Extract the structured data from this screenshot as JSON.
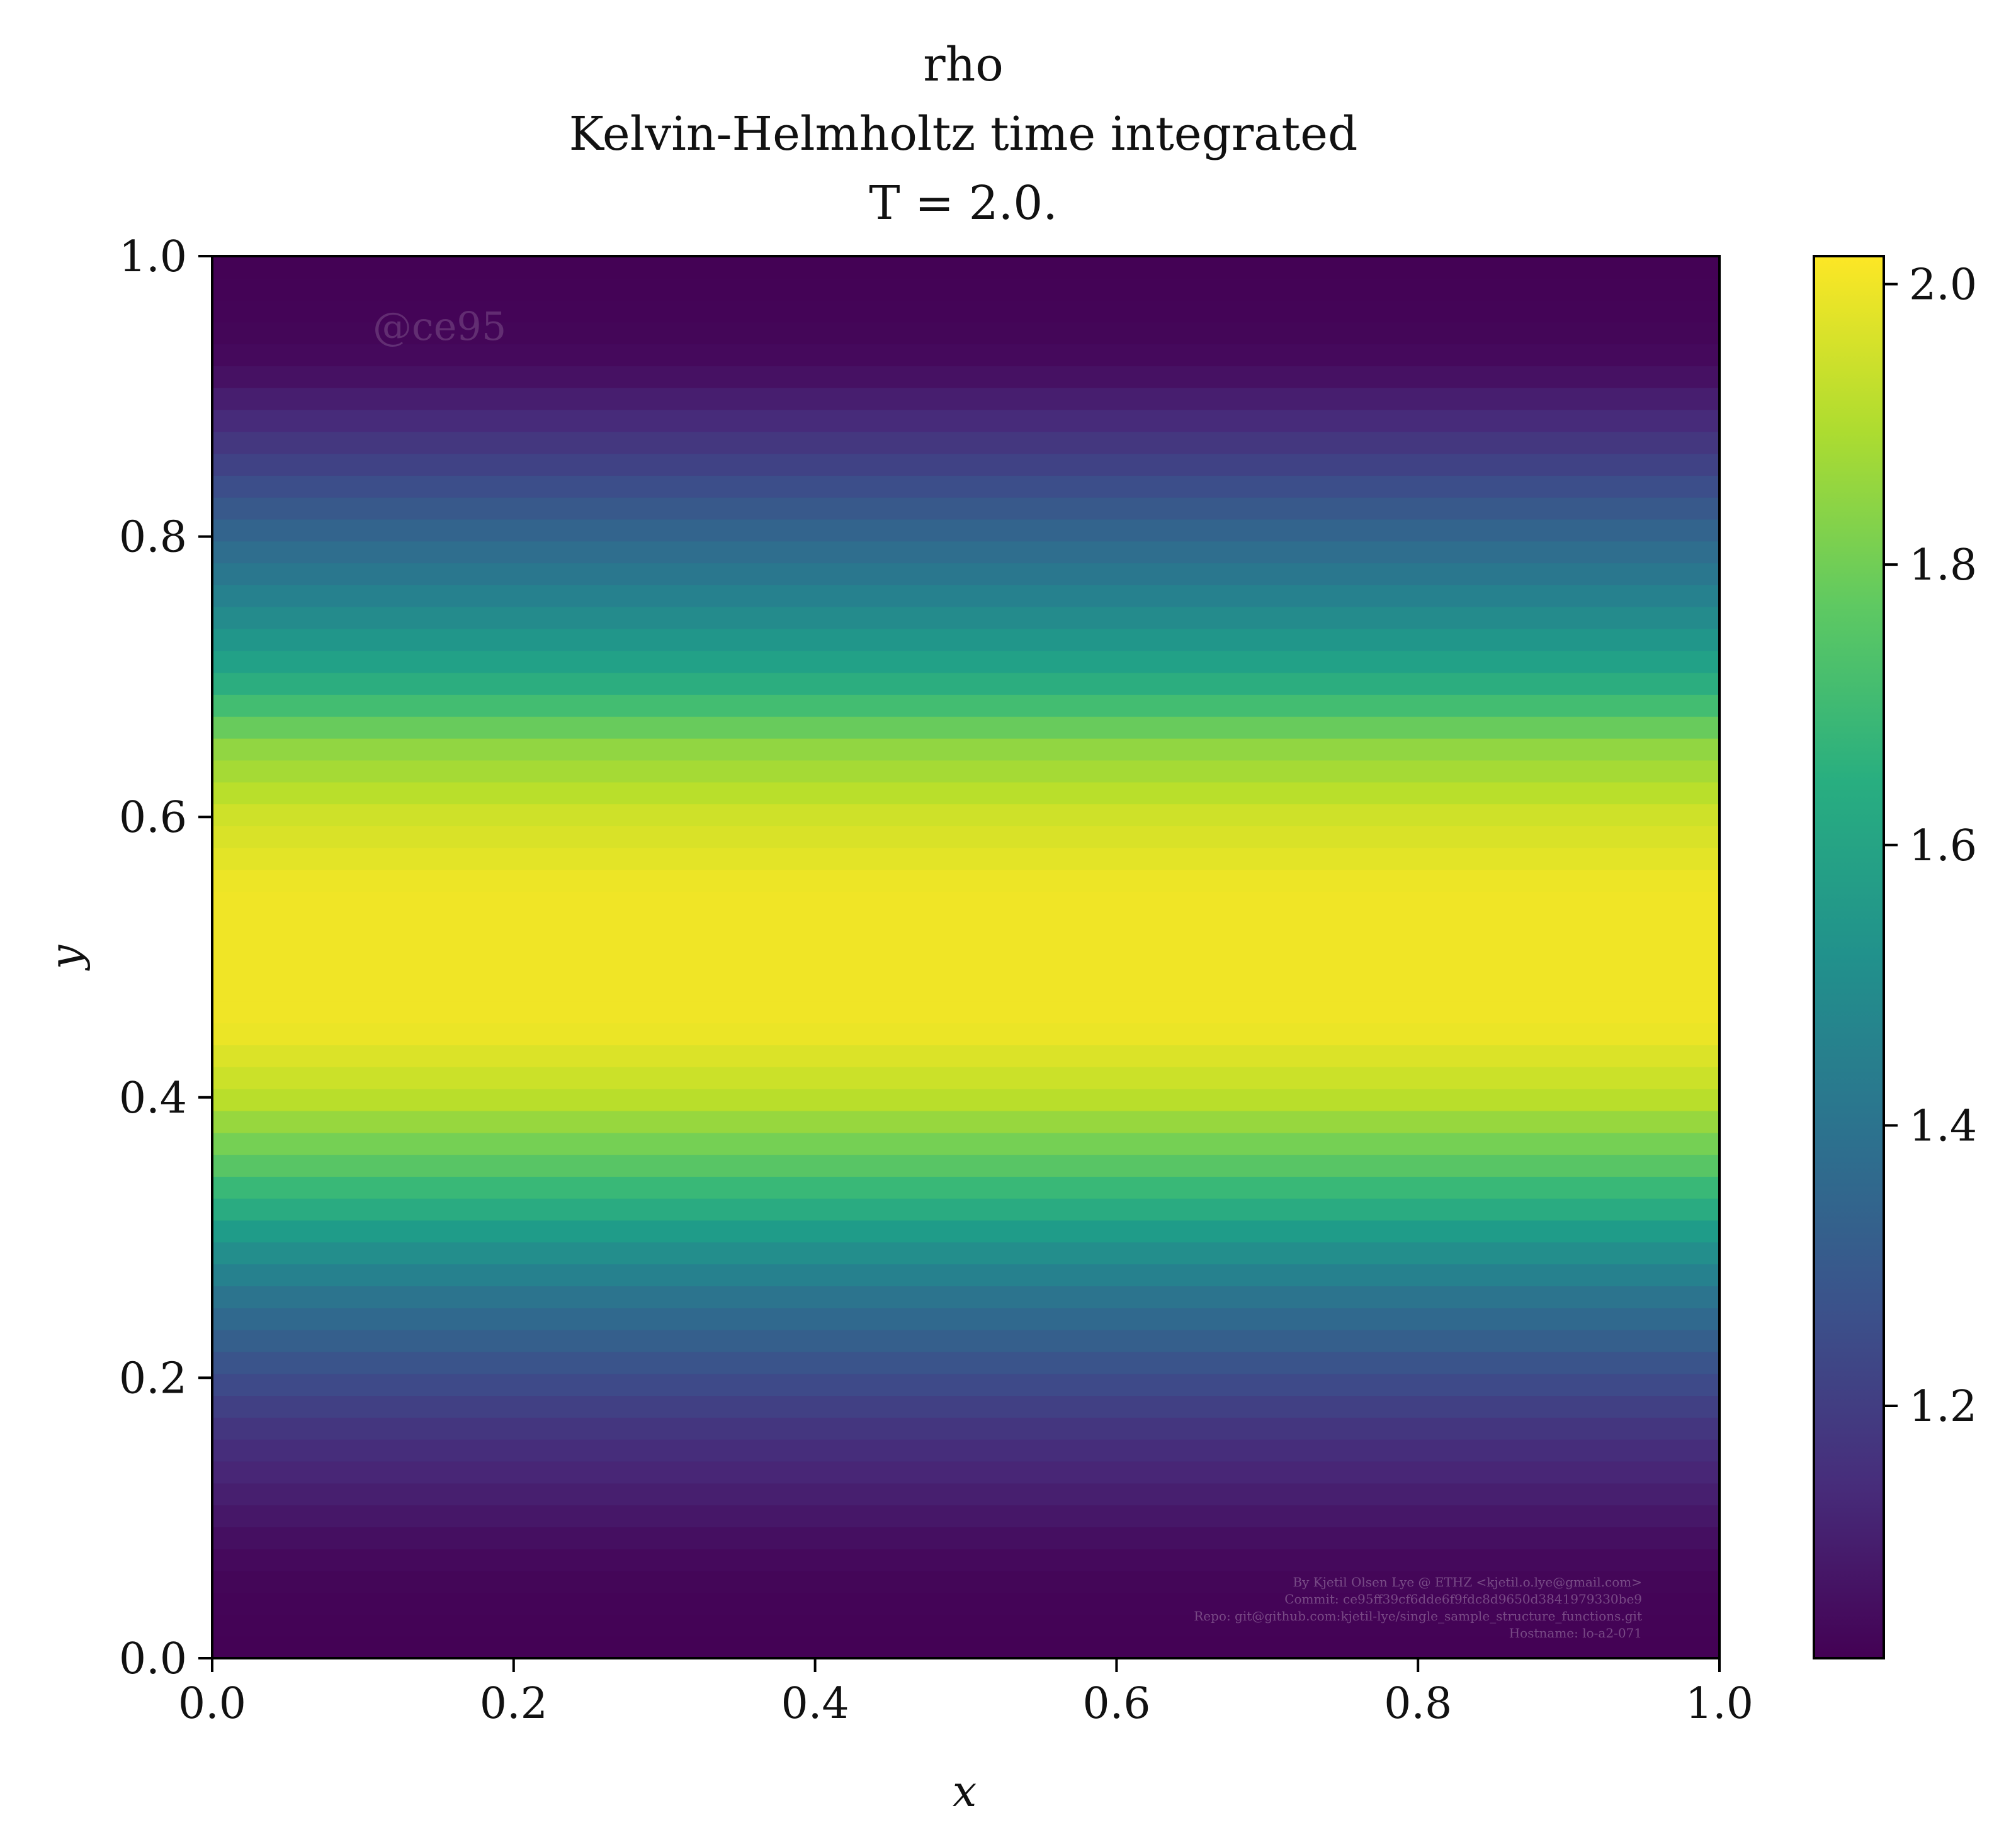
{
  "chart_data": {
    "type": "heatmap",
    "title_lines": [
      "rho",
      "Kelvin-Helmholtz time integrated",
      "T = 2.0."
    ],
    "xlabel": "x",
    "ylabel": "y",
    "xlim": [
      0.0,
      1.0
    ],
    "ylim": [
      0.0,
      1.0
    ],
    "xticks": [
      "0.0",
      "0.2",
      "0.4",
      "0.6",
      "0.8",
      "1.0"
    ],
    "yticks": [
      "0.0",
      "0.2",
      "0.4",
      "0.6",
      "0.8",
      "1.0"
    ],
    "colormap": "viridis",
    "colorbar": {
      "vmin": 1.02,
      "vmax": 2.02,
      "ticks": [
        "1.2",
        "1.4",
        "1.6",
        "1.8",
        "2.0"
      ]
    },
    "grid": false,
    "rows": 64,
    "profile_y": [
      0.0,
      0.05,
      0.08,
      0.1,
      0.15,
      0.2,
      0.25,
      0.3,
      0.35,
      0.4,
      0.45,
      0.55,
      0.6,
      0.65,
      0.7,
      0.75,
      0.8,
      0.85,
      0.9,
      0.92,
      0.95,
      1.0
    ],
    "profile_rho": [
      1.02,
      1.03,
      1.05,
      1.08,
      1.15,
      1.25,
      1.38,
      1.55,
      1.75,
      1.92,
      2.0,
      2.0,
      1.95,
      1.85,
      1.62,
      1.48,
      1.35,
      1.22,
      1.1,
      1.05,
      1.03,
      1.02
    ],
    "watermark": "@ce95",
    "credits": [
      "By Kjetil Olsen Lye @ ETHZ <kjetil.o.lye@gmail.com>",
      "Commit: ce95ff39cf6dde6f9fdc8d9650d3841979330be9",
      "Repo: git@github.com:kjetil-lye/single_sample_structure_functions.git",
      "Hostname: lo-a2-071"
    ]
  }
}
